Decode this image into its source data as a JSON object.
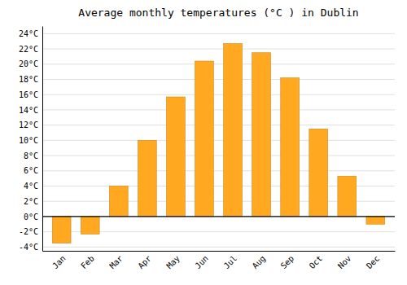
{
  "chart_data": {
    "type": "bar",
    "title": "Average monthly temperatures (°C ) in Dublin",
    "categories": [
      "Jan",
      "Feb",
      "Mar",
      "Apr",
      "May",
      "Jun",
      "Jul",
      "Aug",
      "Sep",
      "Oct",
      "Nov",
      "Dec"
    ],
    "values": [
      -3.5,
      -2.3,
      4.0,
      10.0,
      15.7,
      20.4,
      22.7,
      21.5,
      18.2,
      11.5,
      5.3,
      -1.0
    ],
    "color": "#FFA820",
    "ylim": [
      -4.5,
      25
    ],
    "yticks": [
      {
        "value": -4,
        "label": "-4°C"
      },
      {
        "value": -2,
        "label": "-2°C"
      },
      {
        "value": 0,
        "label": "0°C"
      },
      {
        "value": 2,
        "label": "2°C"
      },
      {
        "value": 4,
        "label": "4°C"
      },
      {
        "value": 6,
        "label": "6°C"
      },
      {
        "value": 8,
        "label": "8°C"
      },
      {
        "value": 10,
        "label": "10°C"
      },
      {
        "value": 12,
        "label": "12°C"
      },
      {
        "value": 14,
        "label": "14°C"
      },
      {
        "value": 16,
        "label": "16°C"
      },
      {
        "value": 18,
        "label": "18°C"
      },
      {
        "value": 20,
        "label": "20°C"
      },
      {
        "value": 22,
        "label": "22°C"
      },
      {
        "value": 24,
        "label": "24°C"
      }
    ],
    "grid": true
  }
}
